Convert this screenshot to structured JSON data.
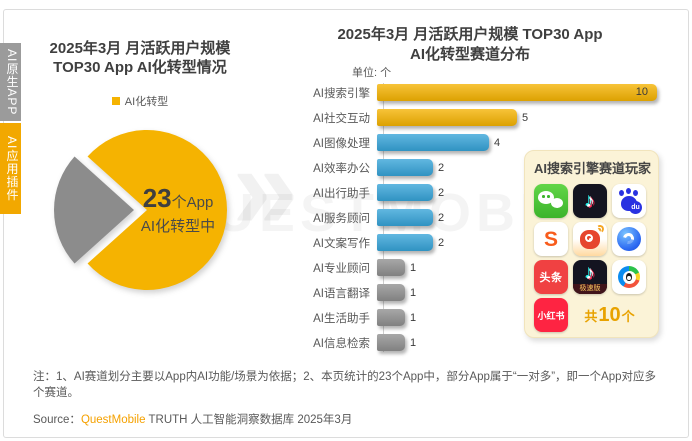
{
  "page": {
    "sidebar_tabs": [
      {
        "label": "AI原生APP"
      },
      {
        "label": "AI应用插件"
      }
    ],
    "left_chart": {
      "title_line1": "2025年3月 月活跃用户规模",
      "title_line2": "TOP30 App AI化转型情况",
      "legend_label": "AI化转型",
      "center_value": "23",
      "center_suffix": "个App",
      "center_caption": "AI化转型中"
    },
    "right_chart": {
      "title_line1": "2025年3月 月活跃用户规模 TOP30 App",
      "title_line2": "AI化转型赛道分布",
      "unit": "单位: 个"
    },
    "players_panel": {
      "title": "AI搜索引擎赛道玩家",
      "apps": [
        {
          "name": "微信",
          "icon": "wechat"
        },
        {
          "name": "抖音",
          "icon": "douyin"
        },
        {
          "name": "百度",
          "icon": "baidu",
          "label": "du"
        },
        {
          "name": "搜狗搜索",
          "icon": "sogou",
          "label": "S"
        },
        {
          "name": "微博",
          "icon": "weibo"
        },
        {
          "name": "夸克",
          "icon": "quark"
        },
        {
          "name": "今日头条",
          "icon": "toutiao",
          "label": "头条"
        },
        {
          "name": "抖音极速版",
          "icon": "douyin-lite",
          "label": "极速版"
        },
        {
          "name": "QQ浏览器",
          "icon": "qq-browser"
        },
        {
          "name": "小红书",
          "icon": "xiaohongshu",
          "label": "小红书"
        }
      ],
      "total_prefix": "共",
      "total_value": "10",
      "total_suffix": "个"
    },
    "note": "注：1、AI赛道划分主要以App内AI功能/场景为依据；2、本页统计的23个App中，部分App属于“一对多”，即一个App对应多个赛道。",
    "source_prefix": "Source：",
    "source_brand": "QuestMobile",
    "source_rest": " TRUTH 人工智能洞察数据库 2025年3月",
    "watermark_text": "QUESTMOBILE",
    "watermark_chevron": "»"
  },
  "colors": {
    "accent_yellow": "#F5B301",
    "bar_blue": "#35A3D8",
    "bar_gray": "#8F8F8F",
    "pie_gray": "#8C8C8C",
    "tab_gray": "#9B9B9B",
    "tab_yellow": "#F2A800",
    "brand_orange": "#F5A100",
    "total_orange": "#E8A200"
  },
  "chart_data": [
    {
      "type": "pie",
      "title": "2025年3月 月活跃用户规模 TOP30 App AI化转型情况",
      "legend": [
        "AI化转型"
      ],
      "legend_position": "top",
      "total": 30,
      "slices": [
        {
          "label": "AI化转型",
          "value": 23,
          "color": "#F5B301"
        },
        {
          "label": "",
          "value": 7,
          "color": "#8C8C8C",
          "exploded": true
        }
      ],
      "center_annotation": "23个App AI化转型中"
    },
    {
      "type": "bar",
      "orientation": "horizontal",
      "title": "2025年3月 月活跃用户规模 TOP30 App AI化转型赛道分布",
      "unit": "个",
      "categories": [
        "AI搜索引擎",
        "AI社交互动",
        "AI图像处理",
        "AI效率办公",
        "AI出行助手",
        "AI服务顾问",
        "AI文案写作",
        "AI专业顾问",
        "AI语言翻译",
        "AI生活助手",
        "AI信息检索"
      ],
      "values": [
        10,
        5,
        4,
        2,
        2,
        2,
        2,
        1,
        1,
        1,
        1
      ],
      "colors": [
        "#F5B301",
        "#F5B301",
        "#35A3D8",
        "#35A3D8",
        "#35A3D8",
        "#35A3D8",
        "#35A3D8",
        "#8F8F8F",
        "#8F8F8F",
        "#8F8F8F",
        "#8F8F8F"
      ],
      "xlim": [
        0,
        10
      ],
      "grid": false,
      "value_labels": true
    }
  ]
}
